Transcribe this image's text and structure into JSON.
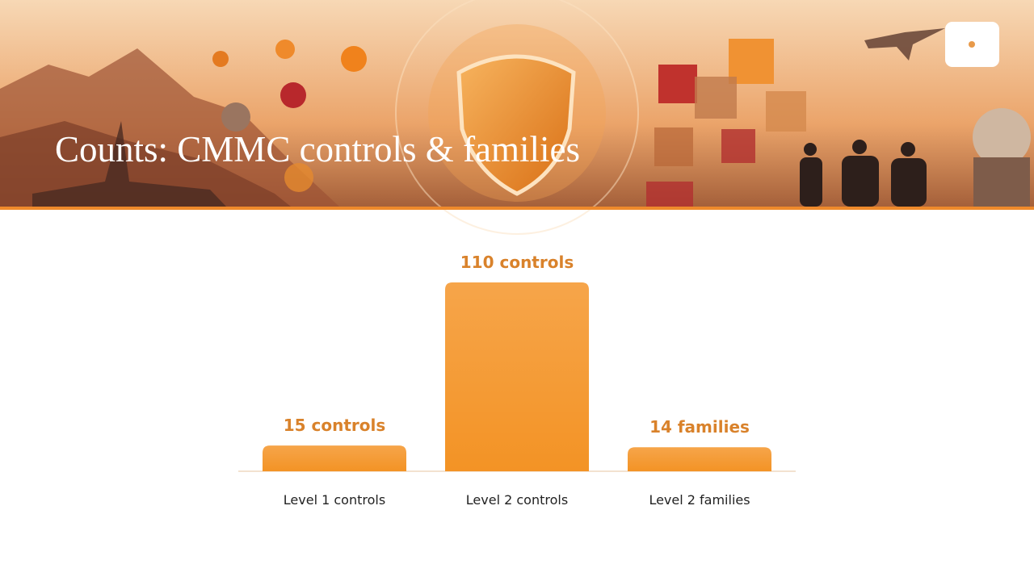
{
  "header": {
    "title": "Counts: CMMC controls & families"
  },
  "chart_data": {
    "type": "bar",
    "categories": [
      "Level 1 controls",
      "Level 2 controls",
      "Level 2 families"
    ],
    "values": [
      15,
      110,
      14
    ],
    "value_labels": [
      "15 controls",
      "110 controls",
      "14 families"
    ],
    "color": "#f39325"
  }
}
